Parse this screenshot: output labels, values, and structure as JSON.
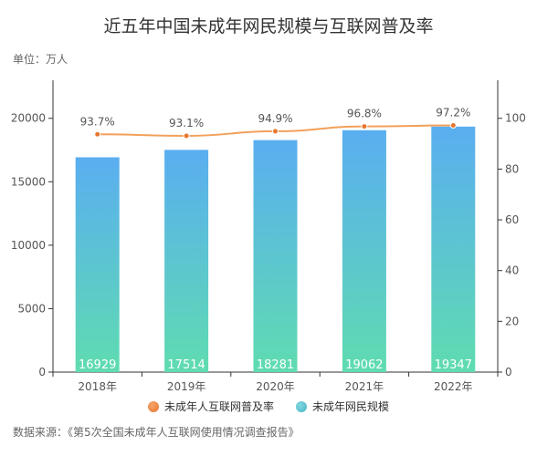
{
  "title": "近五年中国未成年网民规模与互联网普及率",
  "unit_label": "单位：万人",
  "source": {
    "prefix": "数据来源：",
    "name": "第5次全国未成年人互联网使用情况调查报告"
  },
  "colors": {
    "bar_top": "#5aaef0",
    "bar_bottom": "#5fdcb0",
    "line": "#f2a05a",
    "point": "#e8762f"
  },
  "chart_data": {
    "type": "bar+line",
    "categories": [
      "2018年",
      "2019年",
      "2020年",
      "2021年",
      "2022年"
    ],
    "series": [
      {
        "name": "未成年网民规模",
        "type": "bar",
        "axis": "left",
        "values": [
          16929,
          17514,
          18281,
          19062,
          19347
        ]
      },
      {
        "name": "未成年人互联网普及率",
        "type": "line",
        "axis": "right",
        "values": [
          93.7,
          93.1,
          94.9,
          96.8,
          97.2
        ],
        "labels": [
          "93.7%",
          "93.1%",
          "94.9%",
          "96.8%",
          "97.2%"
        ]
      }
    ],
    "left_axis": {
      "ticks": [
        0,
        5000,
        10000,
        15000,
        20000
      ],
      "ylim": [
        0,
        23000
      ]
    },
    "right_axis": {
      "ticks": [
        0,
        20,
        40,
        60,
        80,
        100
      ],
      "ylim": [
        0,
        115
      ]
    },
    "legend": {
      "position": "bottom",
      "items": [
        "未成年人互联网普及率",
        "未成年网民规模"
      ]
    }
  }
}
